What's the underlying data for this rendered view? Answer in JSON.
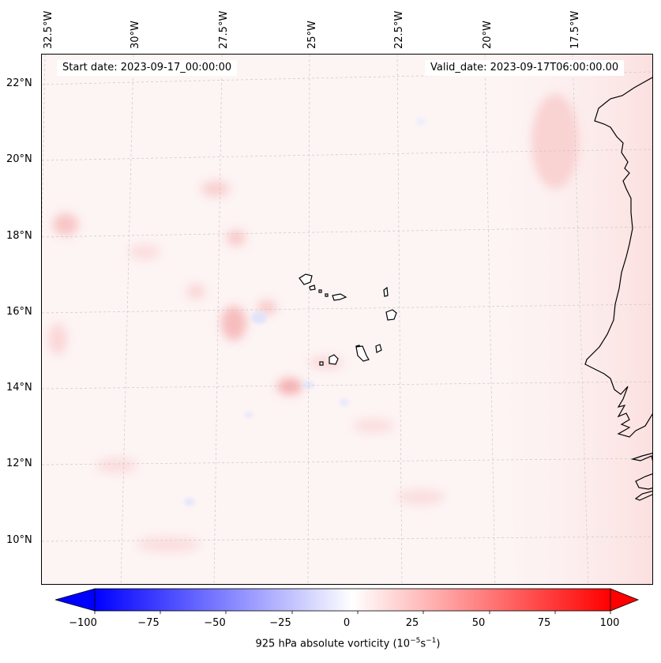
{
  "map": {
    "start_date": "Start date: 2023-09-17_00:00:00",
    "valid_date": "Valid_date: 2023-09-17T06:00:00.00",
    "lon_labels": [
      "32.5°W",
      "30°W",
      "27.5°W",
      "25°W",
      "22.5°W",
      "20°W",
      "17.5°W"
    ],
    "lat_labels": [
      "22°N",
      "20°N",
      "18°N",
      "16°N",
      "14°N",
      "12°N",
      "10°N"
    ],
    "field": "925 hPa absolute vorticity",
    "region": "Cape Verde islands and West African coast"
  },
  "colorbar": {
    "label_prefix": "925 hPa absolute vorticity (10",
    "label_exp1": "−5",
    "label_mid": "s",
    "label_exp2": "−1",
    "label_suffix": ")",
    "ticks": [
      "−100",
      "−75",
      "−50",
      "−25",
      "0",
      "25",
      "50",
      "75",
      "100"
    ],
    "range": [
      -100,
      100
    ],
    "min_color": "#0000ff",
    "mid_color": "#ffffff",
    "max_color": "#ff0000",
    "extend": "both"
  }
}
